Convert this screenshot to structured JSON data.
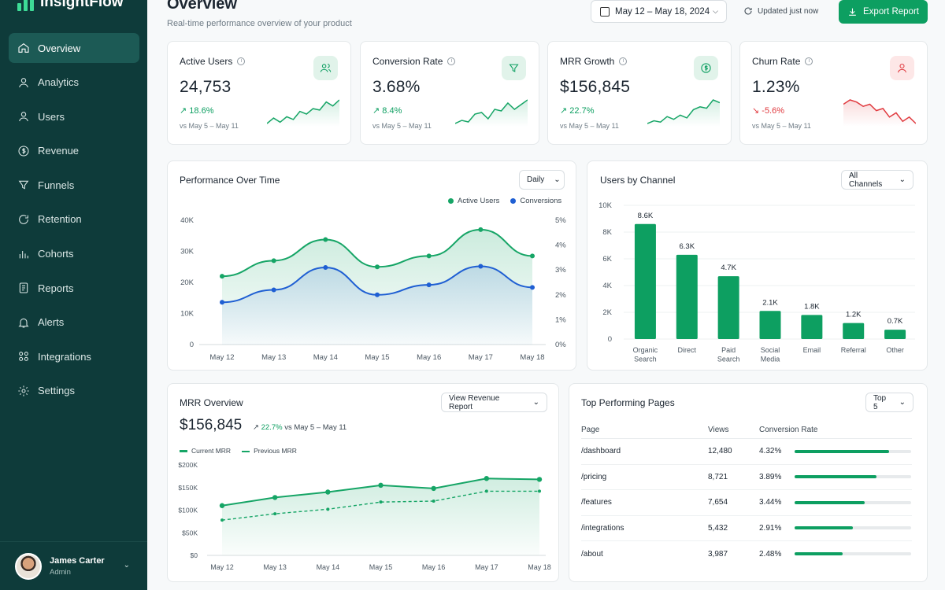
{
  "app": {
    "name": "InsightFlow"
  },
  "nav": [
    {
      "label": "Overview",
      "icon": "home-icon",
      "active": true
    },
    {
      "label": "Analytics",
      "icon": "analytics-icon"
    },
    {
      "label": "Users",
      "icon": "user-icon"
    },
    {
      "label": "Revenue",
      "icon": "dollar-icon"
    },
    {
      "label": "Funnels",
      "icon": "funnel-icon"
    },
    {
      "label": "Retention",
      "icon": "retention-icon"
    },
    {
      "label": "Cohorts",
      "icon": "bar-chart-icon"
    },
    {
      "label": "Reports",
      "icon": "report-icon"
    },
    {
      "label": "Alerts",
      "icon": "bell-icon"
    },
    {
      "label": "Integrations",
      "icon": "grid-icon"
    },
    {
      "label": "Settings",
      "icon": "gear-icon"
    }
  ],
  "user": {
    "name": "James Carter",
    "role": "Admin"
  },
  "header": {
    "title": "Overview",
    "subtitle": "Real-time performance overview of your product",
    "date_range": "May 12 – May 18, 2024",
    "updated": "Updated just now",
    "export_label": "Export Report"
  },
  "kpis": [
    {
      "title": "Active Users",
      "value": "24,753",
      "delta": "18.6%",
      "trend": "up",
      "compare": "vs May 5 – May 11",
      "icon": "users-icon",
      "spark": [
        20,
        28,
        22,
        30,
        26,
        38,
        34,
        42,
        40,
        52,
        46,
        55
      ]
    },
    {
      "title": "Conversion Rate",
      "value": "3.68%",
      "delta": "8.4%",
      "trend": "up",
      "compare": "vs May 5 – May 11",
      "icon": "funnel-icon",
      "spark": [
        22,
        26,
        24,
        34,
        36,
        28,
        40,
        38,
        48,
        40,
        46,
        52
      ]
    },
    {
      "title": "MRR Growth",
      "value": "$156,845",
      "delta": "22.7%",
      "trend": "up",
      "compare": "vs May 5 – May 11",
      "icon": "dollar-icon",
      "spark": [
        20,
        24,
        22,
        30,
        26,
        32,
        28,
        40,
        44,
        42,
        54,
        50
      ]
    },
    {
      "title": "Churn Rate",
      "value": "1.23%",
      "delta": "-5.6%",
      "trend": "down",
      "compare": "vs May 5 – May 11",
      "icon": "user-minus-icon",
      "spark": [
        46,
        50,
        48,
        44,
        46,
        40,
        42,
        34,
        38,
        30,
        34,
        28
      ]
    }
  ],
  "performance": {
    "title": "Performance Over Time",
    "period": "Daily",
    "chart_data": {
      "type": "line",
      "x": [
        "May 12",
        "May 13",
        "May 14",
        "May 15",
        "May 16",
        "May 17",
        "May 18"
      ],
      "series": [
        {
          "name": "Active Users",
          "axis": "left",
          "color": "#16a566",
          "values": [
            22000,
            27000,
            33800,
            25000,
            28500,
            37000,
            28500
          ]
        },
        {
          "name": "Conversions",
          "axis": "right",
          "color": "#1f5fd3",
          "values": [
            1.7,
            2.2,
            3.1,
            2.0,
            2.4,
            3.15,
            2.3
          ]
        }
      ],
      "y_left": {
        "ticks": [
          "0",
          "10K",
          "20K",
          "30K",
          "40K"
        ],
        "range": [
          0,
          40000
        ]
      },
      "y_right": {
        "ticks": [
          "0%",
          "1%",
          "2%",
          "3%",
          "4%",
          "5%"
        ],
        "range": [
          0,
          5
        ]
      },
      "legend": "top-right"
    }
  },
  "channels": {
    "title": "Users by Channel",
    "filter": "All Channels",
    "chart_data": {
      "type": "bar",
      "categories": [
        "Organic Search",
        "Direct",
        "Paid Search",
        "Social Media",
        "Email",
        "Referral",
        "Other"
      ],
      "values": [
        8.6,
        6.3,
        4.7,
        2.1,
        1.8,
        1.2,
        0.7
      ],
      "labels": [
        "8.6K",
        "6.3K",
        "4.7K",
        "2.1K",
        "1.8K",
        "1.2K",
        "0.7K"
      ],
      "y_ticks": [
        "0",
        "2K",
        "4K",
        "6K",
        "8K",
        "10K"
      ],
      "ylim": [
        0,
        10
      ],
      "color": "#0d9f61"
    }
  },
  "mrr": {
    "title": "MRR Overview",
    "value": "$156,845",
    "delta": "22.7%",
    "compare": "vs May 5 – May 11",
    "action": "View Revenue Report",
    "chart_data": {
      "type": "area",
      "x": [
        "May 12",
        "May 13",
        "May 14",
        "May 15",
        "May 16",
        "May 17",
        "May 18"
      ],
      "series": [
        {
          "name": "Current MRR",
          "style": "solid",
          "color": "#16a566",
          "values": [
            110000,
            128000,
            140000,
            155000,
            148000,
            170000,
            168000
          ]
        },
        {
          "name": "Previous MRR",
          "style": "dashed",
          "color": "#16a566",
          "values": [
            78000,
            92000,
            102000,
            118000,
            120000,
            142000,
            142000
          ]
        }
      ],
      "y_ticks": [
        "$0",
        "$50K",
        "$100K",
        "$150K",
        "$200K"
      ],
      "ylim": [
        0,
        200000
      ]
    }
  },
  "top_pages": {
    "title": "Top Performing Pages",
    "filter": "Top 5",
    "columns": [
      "Page",
      "Views",
      "Conversion Rate"
    ],
    "rows": [
      {
        "page": "/dashboard",
        "views": "12,480",
        "rate": "4.32%",
        "fill": 0.81
      },
      {
        "page": "/pricing",
        "views": "8,721",
        "rate": "3.89%",
        "fill": 0.7
      },
      {
        "page": "/features",
        "views": "7,654",
        "rate": "3.44%",
        "fill": 0.6
      },
      {
        "page": "/integrations",
        "views": "5,432",
        "rate": "2.91%",
        "fill": 0.5
      },
      {
        "page": "/about",
        "views": "3,987",
        "rate": "2.48%",
        "fill": 0.41
      }
    ]
  }
}
